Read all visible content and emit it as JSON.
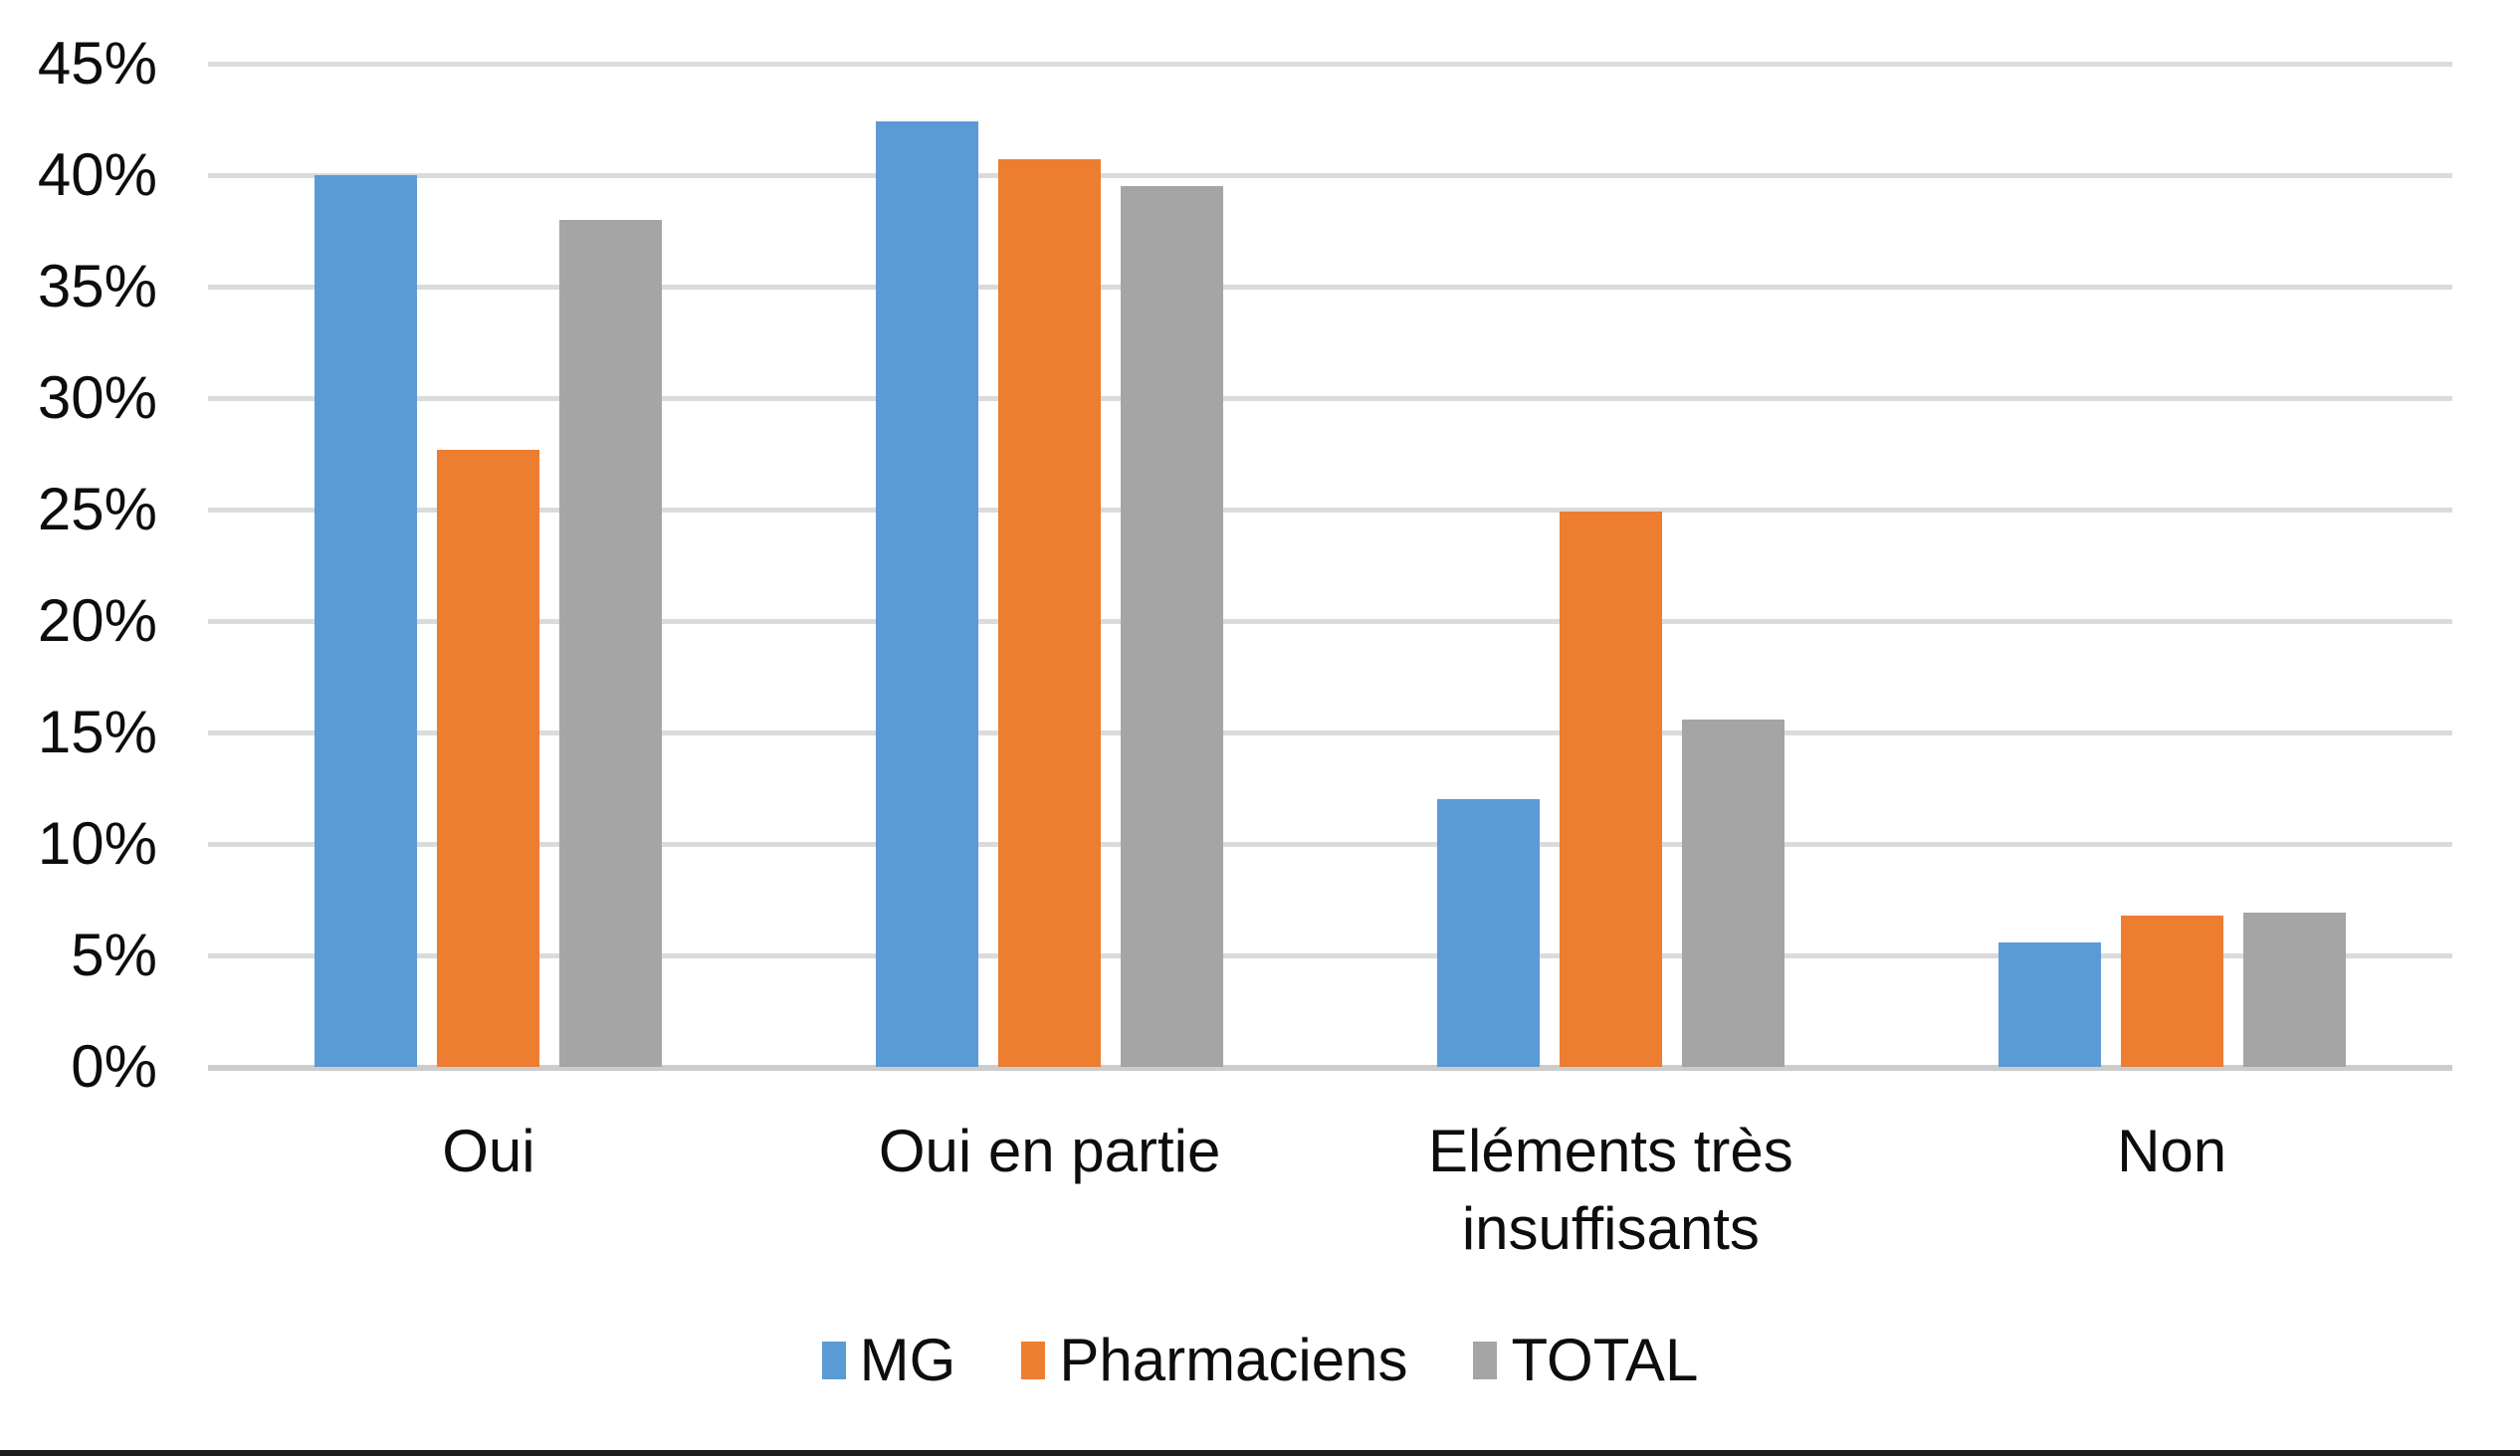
{
  "page": {
    "background": "#FFFFFF",
    "bottom_border_color": "#1C1C1C"
  },
  "axis": {
    "tick_text_color": "#0D0D0D",
    "gridline_color": "#DBDBDB",
    "axis_line_color": "#CCCCCC"
  },
  "chart_data": {
    "type": "bar",
    "title": "",
    "categories": [
      "Oui",
      "Oui en partie",
      "Eléments très insuffisants",
      "Non"
    ],
    "series": [
      {
        "name": "MG",
        "color": "#5B9BD5",
        "values": [
          40.0,
          42.4,
          12.0,
          5.6
        ]
      },
      {
        "name": "Pharmaciens",
        "color": "#ED7D31",
        "values": [
          27.7,
          40.7,
          24.9,
          6.8
        ]
      },
      {
        "name": "TOTAL",
        "color": "#A5A5A5",
        "values": [
          38.0,
          39.5,
          15.6,
          6.9
        ]
      }
    ],
    "ylabel": "",
    "xlabel": "",
    "ylim": [
      0,
      45
    ],
    "ytick_step": 5,
    "ytick_labels": [
      "0%",
      "5%",
      "10%",
      "15%",
      "20%",
      "25%",
      "30%",
      "35%",
      "40%",
      "45%"
    ],
    "grid": true,
    "legend_position": "bottom"
  }
}
